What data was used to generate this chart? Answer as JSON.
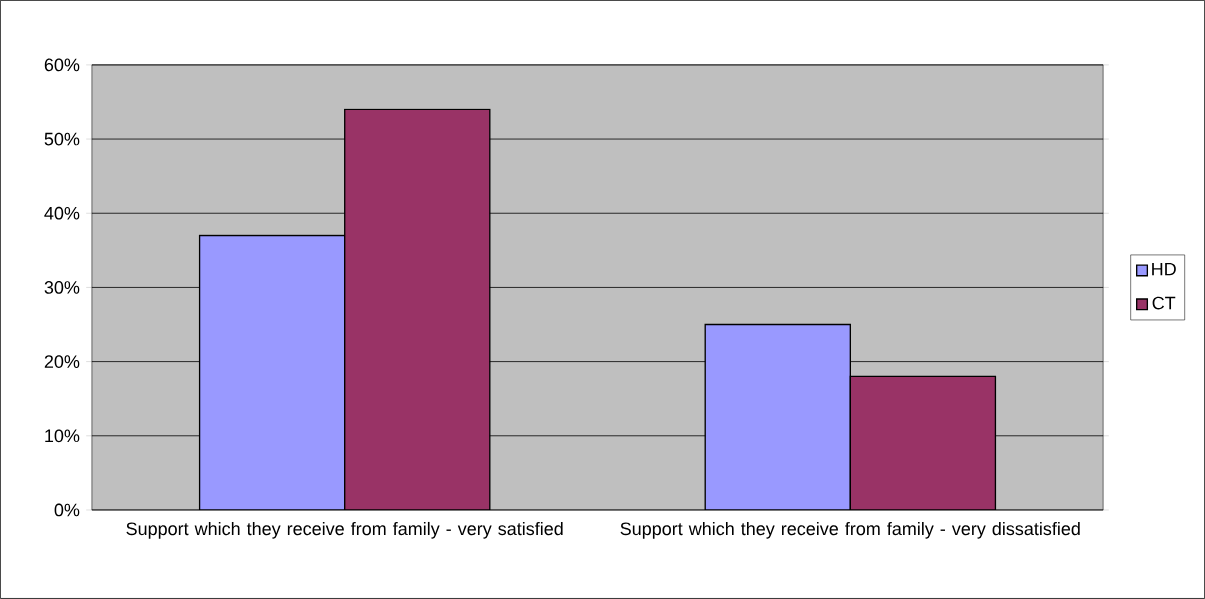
{
  "chart_data": {
    "type": "bar",
    "categories": [
      "Support which they receive from family - very satisfied",
      "Support which they receive from family - very dissatisfied"
    ],
    "series": [
      {
        "name": "HD",
        "color": "#9999ff",
        "values": [
          37,
          25
        ]
      },
      {
        "name": "CT",
        "color": "#993366",
        "values": [
          54,
          18
        ]
      }
    ],
    "ylim": [
      0,
      60
    ],
    "yticks": [
      {
        "value": 0,
        "label": "0%"
      },
      {
        "value": 10,
        "label": "10%"
      },
      {
        "value": 20,
        "label": "20%"
      },
      {
        "value": 30,
        "label": "30%"
      },
      {
        "value": 40,
        "label": "40%"
      },
      {
        "value": 50,
        "label": "50%"
      },
      {
        "value": 60,
        "label": "60%"
      }
    ],
    "grid": "y",
    "legend": "right"
  }
}
